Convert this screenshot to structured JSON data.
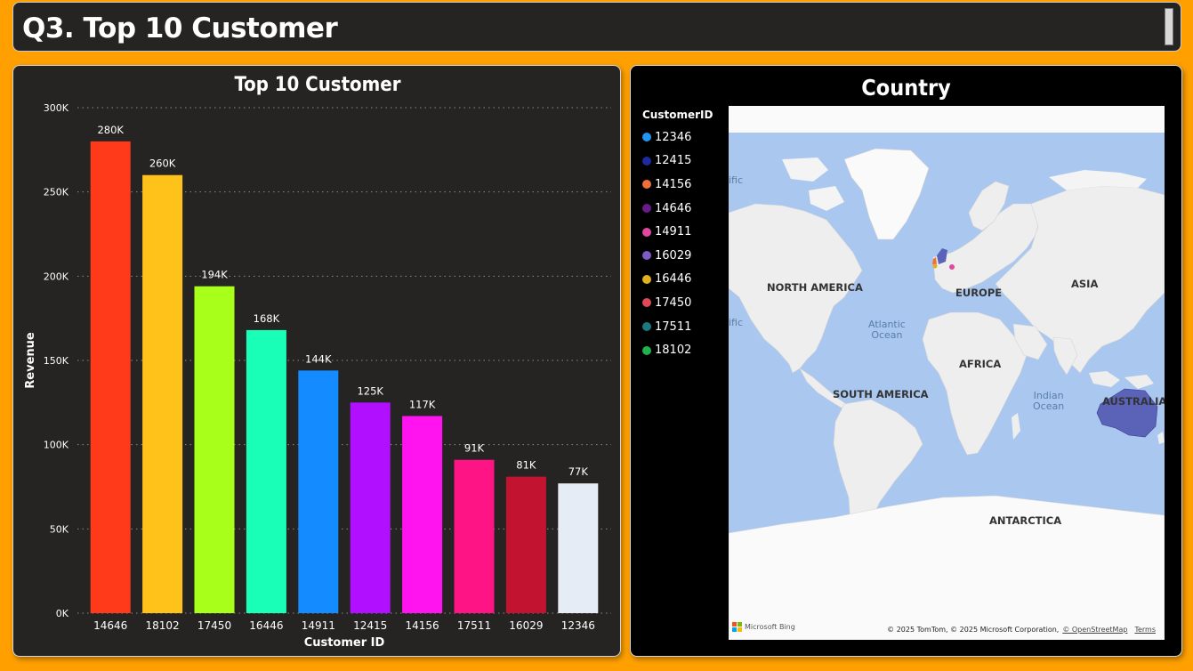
{
  "header": {
    "title": "Q3. Top 10 Customer"
  },
  "chart_data": {
    "type": "bar",
    "title": "Top 10 Customer",
    "xlabel": "Customer ID",
    "ylabel": "Revenue",
    "categories": [
      "14646",
      "18102",
      "17450",
      "16446",
      "14911",
      "12415",
      "14156",
      "17511",
      "16029",
      "12346"
    ],
    "values": [
      280000,
      260000,
      194000,
      168000,
      144000,
      125000,
      117000,
      91000,
      81000,
      77000
    ],
    "data_labels": [
      "280K",
      "260K",
      "194K",
      "168K",
      "144K",
      "125K",
      "117K",
      "91K",
      "81K",
      "77K"
    ],
    "colors": [
      "#FF3A1A",
      "#FFC21A",
      "#A8FF1A",
      "#1AFFB8",
      "#148CFF",
      "#B010FF",
      "#FF14F0",
      "#FF1485",
      "#C21430",
      "#E6ECF5"
    ],
    "ylim": [
      0,
      300000
    ],
    "yticks": [
      0,
      50000,
      100000,
      150000,
      200000,
      250000,
      300000
    ],
    "ytick_labels": [
      "0K",
      "50K",
      "100K",
      "150K",
      "200K",
      "250K",
      "300K"
    ],
    "grid": true
  },
  "map": {
    "title": "Country",
    "legend_title": "CustomerID",
    "legend": [
      {
        "label": "12346",
        "color": "#2196F3"
      },
      {
        "label": "12415",
        "color": "#1E2A9E"
      },
      {
        "label": "14156",
        "color": "#F0703A"
      },
      {
        "label": "14646",
        "color": "#6A1B8A"
      },
      {
        "label": "14911",
        "color": "#E048A0"
      },
      {
        "label": "16029",
        "color": "#7B5BC4"
      },
      {
        "label": "16446",
        "color": "#E0B020"
      },
      {
        "label": "17450",
        "color": "#E04858"
      },
      {
        "label": "17511",
        "color": "#1A7A80"
      },
      {
        "label": "18102",
        "color": "#22B04A"
      }
    ],
    "labels": {
      "north_america": "NORTH AMERICA",
      "south_america": "SOUTH AMERICA",
      "europe": "EUROPE",
      "africa": "AFRICA",
      "asia": "ASIA",
      "australia": "AUSTRALIA",
      "antarctica": "ANTARCTICA",
      "atlantic_1": "Atlantic",
      "atlantic_2": "Ocean",
      "indian_1": "Indian",
      "indian_2": "Ocean",
      "pacific_edge_1": "ific",
      "pacific_edge_2": "ific"
    },
    "logo_text": "Microsoft Bing",
    "attribution": "© 2025 TomTom, © 2025 Microsoft Corporation,",
    "attribution_link": "© OpenStreetMap",
    "terms": "Terms",
    "colors": {
      "water": "#AAC7F0",
      "land": "#EEEEEE",
      "ice": "#FAFAFA"
    }
  }
}
